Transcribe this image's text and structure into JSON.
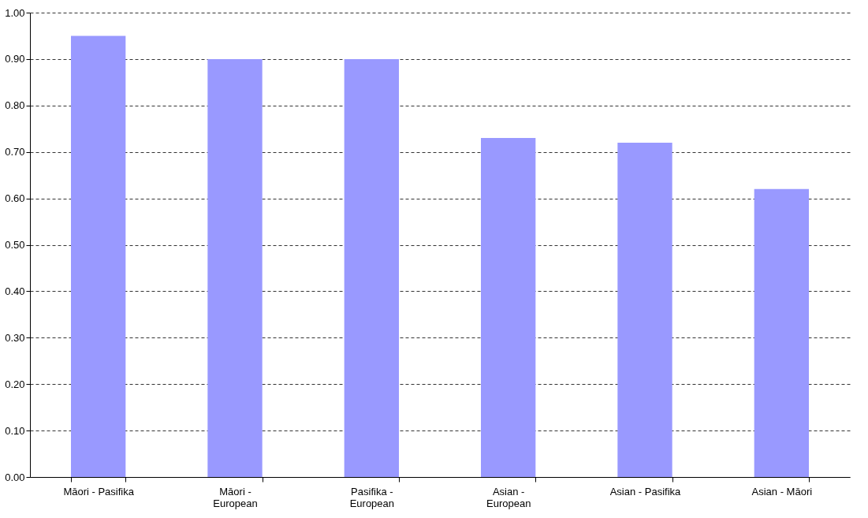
{
  "chart_data": {
    "type": "bar",
    "categories": [
      "Māori - Pasifika",
      "Māori -\nEuropean",
      "Pasifika -\nEuropean",
      "Asian -\nEuropean",
      "Asian - Pasifika",
      "Asian - Māori"
    ],
    "values": [
      0.95,
      0.9,
      0.9,
      0.73,
      0.72,
      0.62
    ],
    "color": "#9999ff",
    "ylim": [
      0,
      1
    ],
    "yticks": [
      {
        "value": 0,
        "label": "0.00"
      },
      {
        "value": 0.1,
        "label": "0.10"
      },
      {
        "value": 0.2,
        "label": "0.20"
      },
      {
        "value": 0.3,
        "label": "0.30"
      },
      {
        "value": 0.4,
        "label": "0.40"
      },
      {
        "value": 0.5,
        "label": "0.50"
      },
      {
        "value": 0.6,
        "label": "0.60"
      },
      {
        "value": 0.7,
        "label": "0.70"
      },
      {
        "value": 0.8,
        "label": "0.80"
      },
      {
        "value": 0.9,
        "label": "0.90"
      },
      {
        "value": 1,
        "label": "1.00"
      }
    ],
    "grid": "y"
  }
}
